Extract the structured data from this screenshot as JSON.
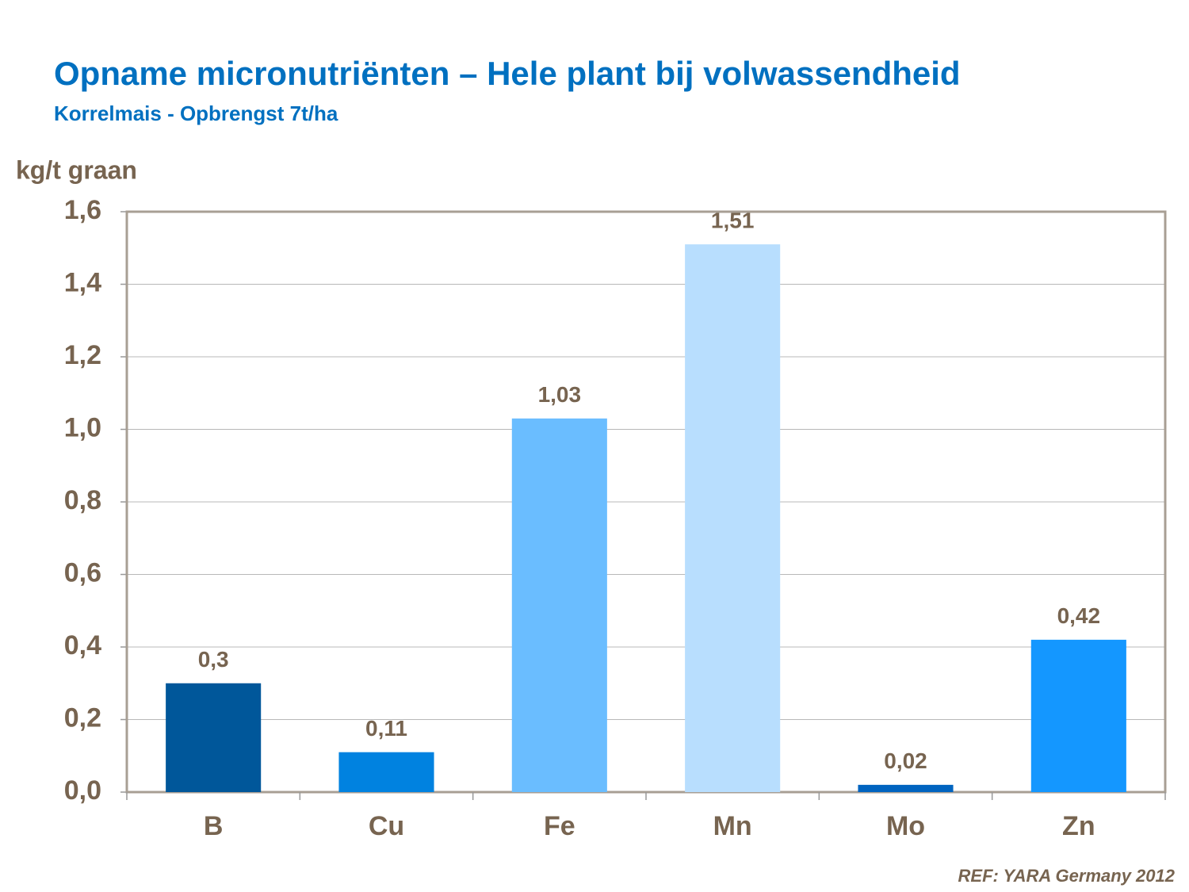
{
  "chart_data": {
    "type": "bar",
    "title": "Opname micronutriënten – Hele plant bij volwassendheid",
    "subtitle": "Korrelmais - Opbrengst 7t/ha",
    "y_label": "kg/t graan",
    "source": "REF: YARA Germany 2012",
    "categories": [
      "B",
      "Cu",
      "Fe",
      "Mn",
      "Mo",
      "Zn"
    ],
    "values": [
      0.3,
      0.11,
      1.03,
      1.51,
      0.02,
      0.42
    ],
    "value_labels": [
      "0,3",
      "0,11",
      "1,03",
      "1,51",
      "0,02",
      "0,42"
    ],
    "colors": [
      "#00579a",
      "#0082e0",
      "#6abdff",
      "#b8defe",
      "#0064c0",
      "#1497ff"
    ],
    "ylim": [
      0,
      1.6
    ],
    "yticks": [
      {
        "value": 0,
        "label": "0,0"
      },
      {
        "value": 0.2,
        "label": "0,2"
      },
      {
        "value": 0.4,
        "label": "0,4"
      },
      {
        "value": 0.6,
        "label": "0,6"
      },
      {
        "value": 0.8,
        "label": "0,8"
      },
      {
        "value": 1.0,
        "label": "1,0"
      },
      {
        "value": 1.2,
        "label": "1,2"
      },
      {
        "value": 1.4,
        "label": "1,4"
      },
      {
        "value": 1.6,
        "label": "1,6"
      }
    ],
    "grid": true
  }
}
